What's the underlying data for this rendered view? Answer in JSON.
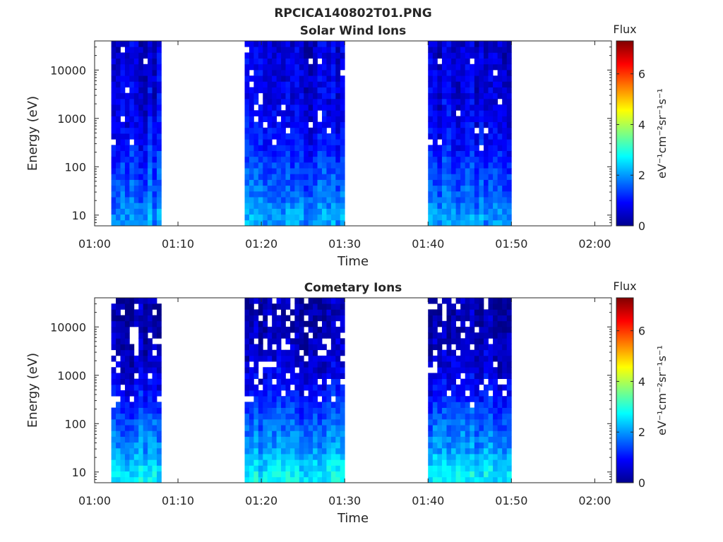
{
  "figure_title": "RPCICA140802T01.PNG",
  "chart_data": [
    {
      "type": "heatmap",
      "title": "Solar Wind Ions",
      "xlabel": "Time",
      "ylabel": "Energy (eV)",
      "xlim": [
        "01:00",
        "02:02"
      ],
      "ylim": [
        6,
        40000
      ],
      "yscale": "log",
      "x_ticks": [
        "01:00",
        "01:10",
        "01:20",
        "01:30",
        "01:40",
        "01:50",
        "02:00"
      ],
      "y_ticks": [
        "10",
        "100",
        "1000",
        "10000"
      ],
      "colorbar": {
        "title": "Flux",
        "label": "eV⁻¹cm⁻²sr⁻¹s⁻¹",
        "min": 0,
        "max": 7.3,
        "ticks": [
          "0",
          "2",
          "4",
          "6"
        ],
        "colormap": "jet"
      },
      "data_intervals": [
        {
          "start": "01:02",
          "end": "01:08"
        },
        {
          "start": "01:18",
          "end": "01:30"
        },
        {
          "start": "01:40",
          "end": "01:50"
        }
      ],
      "flux_profile": {
        "energy": [
          10,
          30,
          100,
          300,
          1000,
          3000,
          10000,
          30000
        ],
        "flux": [
          2.0,
          1.6,
          1.3,
          1.0,
          0.8,
          0.7,
          0.7,
          0.6
        ]
      }
    },
    {
      "type": "heatmap",
      "title": "Cometary Ions",
      "xlabel": "Time",
      "ylabel": "Energy (eV)",
      "xlim": [
        "01:00",
        "02:02"
      ],
      "ylim": [
        6,
        40000
      ],
      "yscale": "log",
      "x_ticks": [
        "01:00",
        "01:10",
        "01:20",
        "01:30",
        "01:40",
        "01:50",
        "02:00"
      ],
      "y_ticks": [
        "10",
        "100",
        "1000",
        "10000"
      ],
      "colorbar": {
        "title": "Flux",
        "label": "eV⁻¹cm⁻²sr⁻¹s⁻¹",
        "min": 0,
        "max": 7.3,
        "ticks": [
          "0",
          "2",
          "4",
          "6"
        ],
        "colormap": "jet"
      },
      "data_intervals": [
        {
          "start": "01:02",
          "end": "01:08"
        },
        {
          "start": "01:18",
          "end": "01:30"
        },
        {
          "start": "01:40",
          "end": "01:50"
        }
      ],
      "flux_profile": {
        "energy": [
          10,
          30,
          100,
          300,
          1000,
          3000,
          10000,
          30000
        ],
        "flux": [
          2.6,
          2.0,
          1.6,
          1.1,
          0.7,
          0.5,
          0.3,
          0.3
        ]
      }
    }
  ]
}
